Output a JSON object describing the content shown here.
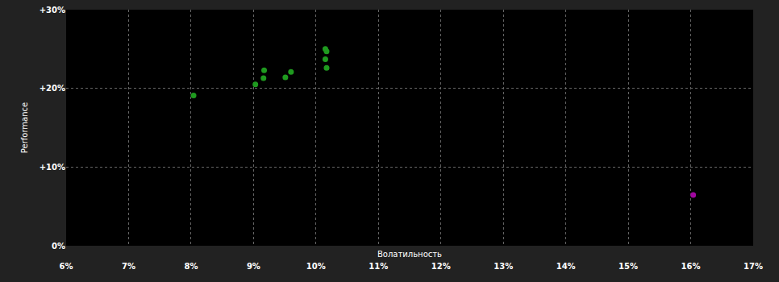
{
  "chart_data": {
    "type": "scatter",
    "x_label": "Волатильность",
    "y_label": "Performance",
    "x": [
      8.04,
      9.03,
      9.17,
      9.16,
      9.51,
      9.6,
      10.15,
      10.17,
      10.15,
      10.17,
      16.04
    ],
    "values": [
      19.1,
      20.5,
      22.3,
      21.3,
      21.4,
      22.1,
      25.0,
      24.7,
      23.7,
      22.6,
      6.45
    ],
    "colors": [
      "#1f9a1f",
      "#1f9a1f",
      "#1f9a1f",
      "#1f9a1f",
      "#1f9a1f",
      "#1f9a1f",
      "#1f9a1f",
      "#1f9a1f",
      "#1f9a1f",
      "#1f9a1f",
      "#a0069f"
    ],
    "marker": "circle",
    "xlim": [
      6,
      17
    ],
    "xticks": [
      {
        "value": 6,
        "label": "6%"
      },
      {
        "value": 7,
        "label": "7%"
      },
      {
        "value": 8,
        "label": "8%"
      },
      {
        "value": 9,
        "label": "9%"
      },
      {
        "value": 10,
        "label": "10%"
      },
      {
        "value": 11,
        "label": "11%"
      },
      {
        "value": 12,
        "label": "12%"
      },
      {
        "value": 13,
        "label": "13%"
      },
      {
        "value": 14,
        "label": "14%"
      },
      {
        "value": 15,
        "label": "15%"
      },
      {
        "value": 16,
        "label": "16%"
      },
      {
        "value": 17,
        "label": "17%"
      }
    ],
    "ylim": [
      0,
      30
    ],
    "yticks": [
      {
        "value": 0,
        "label": "0%"
      },
      {
        "value": 10,
        "label": "+10%"
      },
      {
        "value": 20,
        "label": "+20%"
      },
      {
        "value": 30,
        "label": "+30%"
      }
    ],
    "grid": true
  }
}
